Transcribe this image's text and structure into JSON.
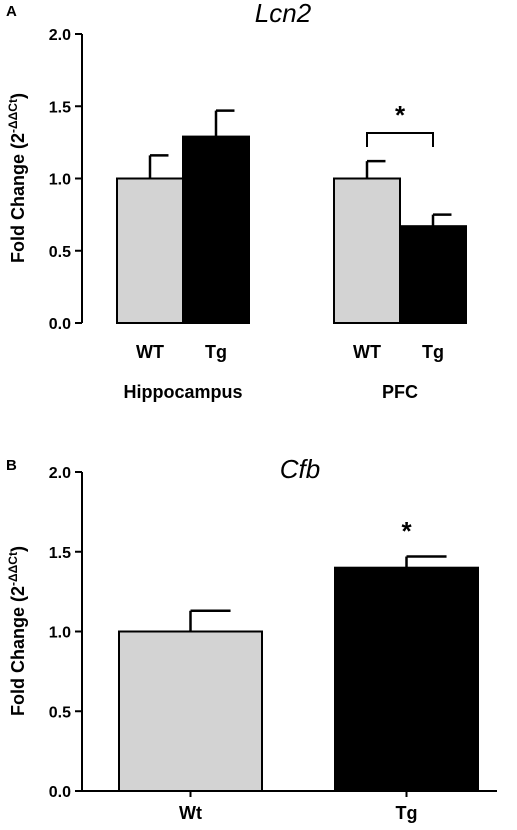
{
  "chart_data": [
    {
      "type": "bar",
      "panel": "A",
      "title": "Lcn2",
      "ylabel_main": "Fold Change (2",
      "ylabel_exp": "-ΔΔCt",
      "ylabel_end": ")",
      "ylim": [
        0,
        2.0
      ],
      "yticks": [
        "0.0",
        "0.5",
        "1.0",
        "1.5",
        "2.0"
      ],
      "groups": [
        {
          "label": "Hippocampus",
          "bars": [
            {
              "label": "WT",
              "value": 1.0,
              "error": 0.16,
              "color": "#d3d3d3"
            },
            {
              "label": "Tg",
              "value": 1.29,
              "error": 0.18,
              "color": "#000000"
            }
          ]
        },
        {
          "label": "PFC",
          "bars": [
            {
              "label": "WT",
              "value": 1.0,
              "error": 0.12,
              "color": "#d3d3d3"
            },
            {
              "label": "Tg",
              "value": 0.67,
              "error": 0.08,
              "color": "#000000"
            }
          ],
          "significance": "*"
        }
      ]
    },
    {
      "type": "bar",
      "panel": "B",
      "title": "Cfb",
      "ylabel_main": "Fold Change (2",
      "ylabel_exp": "-ΔΔCt",
      "ylabel_end": ")",
      "ylim": [
        0,
        2.0
      ],
      "yticks": [
        "0.0",
        "0.5",
        "1.0",
        "1.5",
        "2.0"
      ],
      "bars": [
        {
          "label": "Wt",
          "value": 1.0,
          "error": 0.13,
          "color": "#d3d3d3"
        },
        {
          "label": "Tg",
          "value": 1.4,
          "error": 0.07,
          "color": "#000000",
          "significance": "*"
        }
      ]
    }
  ]
}
